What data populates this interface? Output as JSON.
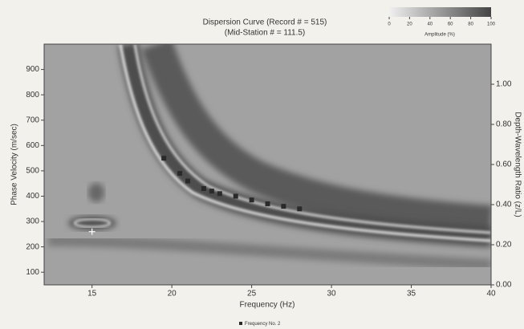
{
  "chart_data": {
    "type": "dispersion",
    "title": "Dispersion Curve (Record # = 515)",
    "subtitle": "(Mid-Station # = 111.5)",
    "x_label": "Frequency (Hz)",
    "y_label": "Phase Velocity (m/sec)",
    "y2_label": "Depth-Wavelength Ratio (z/L)",
    "xlim": [
      12,
      40
    ],
    "xticks": [
      15,
      20,
      25,
      30,
      35,
      40
    ],
    "ylim": [
      50,
      1000
    ],
    "yticks": [
      100,
      200,
      300,
      400,
      500,
      600,
      700,
      800,
      900
    ],
    "y2lim": [
      0,
      1.2
    ],
    "y2ticks": [
      {
        "value": 0,
        "label": "0.00"
      },
      {
        "value": 0.2,
        "label": "0.20"
      },
      {
        "value": 0.4,
        "label": "0.40"
      },
      {
        "value": 0.6,
        "label": "0.60"
      },
      {
        "value": 0.8,
        "label": "0.80"
      },
      {
        "value": 1.0,
        "label": "1.00"
      }
    ],
    "colorbar": {
      "label": "Amplitude (%)",
      "range": [
        0,
        100
      ],
      "ticks": [
        0,
        20,
        40,
        60,
        80,
        100
      ]
    },
    "series": [
      {
        "name": "Frequency No. 2",
        "marker": "square",
        "color": "#2a2a2a",
        "x": [
          19.5,
          20.5,
          21,
          22,
          22.5,
          23,
          24,
          25,
          26,
          27,
          28
        ],
        "values": [
          550,
          490,
          460,
          430,
          420,
          410,
          400,
          385,
          370,
          360,
          350
        ]
      },
      {
        "marker": "plus",
        "color": "#ffffff",
        "x": [
          15
        ],
        "values": [
          260
        ]
      }
    ]
  }
}
